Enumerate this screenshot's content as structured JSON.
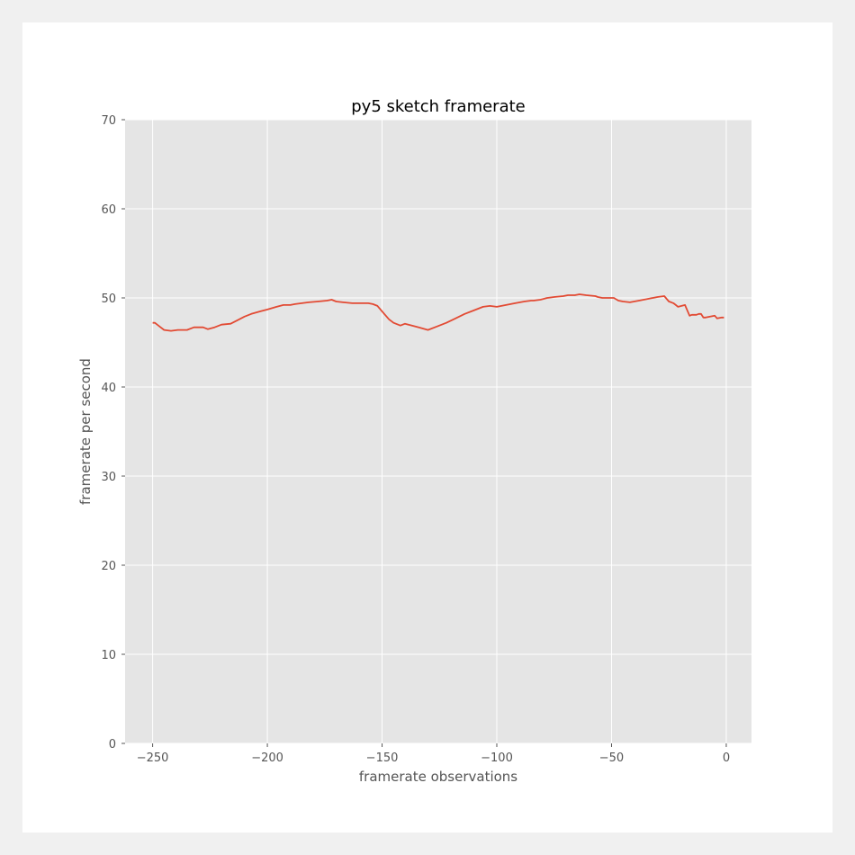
{
  "chart_data": {
    "type": "line",
    "title": "py5 sketch framerate",
    "xlabel": "framerate observations",
    "ylabel": "framerate per second",
    "xlim": [
      -262,
      11
    ],
    "ylim": [
      0,
      70
    ],
    "xticks": [
      -250,
      -200,
      -150,
      -100,
      -50,
      0
    ],
    "xtick_labels": [
      "−250",
      "−200",
      "−150",
      "−100",
      "−50",
      "0"
    ],
    "yticks": [
      0,
      10,
      20,
      30,
      40,
      50,
      60,
      70
    ],
    "ytick_labels": [
      "0",
      "10",
      "20",
      "30",
      "40",
      "50",
      "60",
      "70"
    ],
    "grid": true,
    "legend": "none",
    "colors": {
      "plot_bg": "#e5e5e5",
      "grid": "#ffffff",
      "line": "#e24a33"
    },
    "series": [
      {
        "x": [
          -250,
          -249,
          -247,
          -245,
          -242,
          -239,
          -235,
          -232,
          -228,
          -226,
          -223,
          -220,
          -216,
          -213,
          -210,
          -207,
          -203,
          -200,
          -196,
          -193,
          -190,
          -188,
          -185,
          -182,
          -178,
          -174,
          -172,
          -170,
          -167,
          -163,
          -160,
          -156,
          -154,
          -152,
          -150,
          -147,
          -145,
          -142,
          -140,
          -137,
          -134,
          -130,
          -126,
          -122,
          -118,
          -114,
          -110,
          -106,
          -103,
          -100,
          -96,
          -92,
          -88,
          -85,
          -84,
          -81,
          -78,
          -75,
          -71,
          -69,
          -66,
          -64,
          -61,
          -57,
          -56,
          -54,
          -51,
          -49,
          -47,
          -45,
          -42,
          -38,
          -34,
          -30,
          -27,
          -25,
          -24,
          -23,
          -22,
          -21,
          -18,
          -16,
          -15,
          -13,
          -12,
          -11,
          -10,
          -9,
          -7,
          -5,
          -4,
          -2,
          -1
        ],
        "y": [
          47.2,
          47.2,
          46.8,
          46.4,
          46.3,
          46.4,
          46.4,
          46.7,
          46.7,
          46.5,
          46.7,
          47.0,
          47.1,
          47.5,
          47.9,
          48.2,
          48.5,
          48.7,
          49.0,
          49.2,
          49.2,
          49.3,
          49.4,
          49.5,
          49.6,
          49.7,
          49.8,
          49.6,
          49.5,
          49.4,
          49.4,
          49.4,
          49.3,
          49.1,
          48.5,
          47.6,
          47.2,
          46.9,
          47.1,
          46.9,
          46.7,
          46.4,
          46.8,
          47.2,
          47.7,
          48.2,
          48.6,
          49.0,
          49.1,
          49.0,
          49.2,
          49.4,
          49.6,
          49.7,
          49.7,
          49.8,
          50.0,
          50.1,
          50.2,
          50.3,
          50.3,
          50.4,
          50.3,
          50.2,
          50.1,
          50.0,
          50.0,
          50.0,
          49.7,
          49.6,
          49.5,
          49.7,
          49.9,
          50.1,
          50.2,
          49.6,
          49.5,
          49.4,
          49.2,
          49.0,
          49.2,
          48.0,
          48.1,
          48.1,
          48.2,
          48.2,
          47.8,
          47.8,
          47.9,
          48.0,
          47.7,
          47.8,
          47.8
        ]
      }
    ]
  }
}
